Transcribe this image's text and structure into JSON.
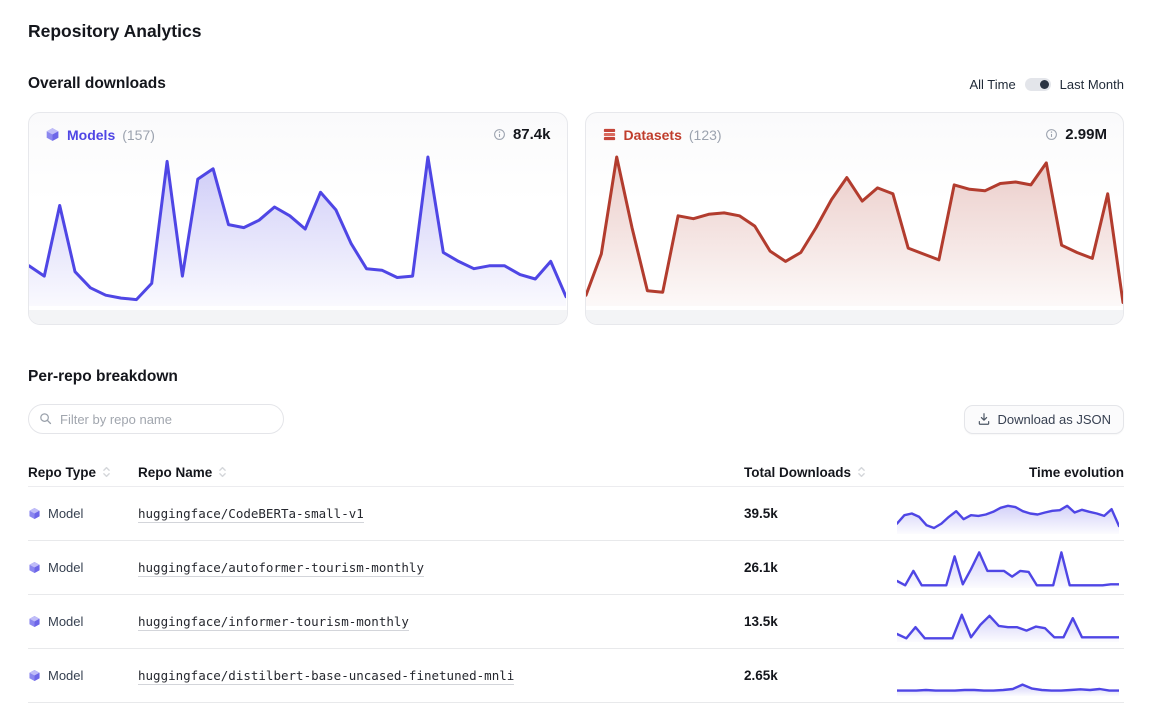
{
  "page": {
    "title": "Repository Analytics"
  },
  "overall": {
    "heading": "Overall downloads",
    "toggle": {
      "option_left": "All Time",
      "option_right": "Last Month",
      "selected": "Last Month"
    },
    "cards": [
      {
        "label": "Models",
        "count": "(157)",
        "total": "87.4k",
        "accent": "#4f46e5"
      },
      {
        "label": "Datasets",
        "count": "(123)",
        "total": "2.99M",
        "accent": "#c03d2c"
      }
    ]
  },
  "breakdown": {
    "heading": "Per-repo breakdown",
    "filter": {
      "placeholder": "Filter by repo name",
      "value": ""
    },
    "download_button": "Download as JSON",
    "columns": [
      {
        "label": "Repo Type",
        "sortable": true
      },
      {
        "label": "Repo Name",
        "sortable": true
      },
      {
        "label": "Total Downloads",
        "sortable": true
      },
      {
        "label": "Time evolution",
        "sortable": false
      }
    ],
    "rows": [
      {
        "type": "Model",
        "name": "huggingface/CodeBERTa-small-v1",
        "downloads": "39.5k"
      },
      {
        "type": "Model",
        "name": "huggingface/autoformer-tourism-monthly",
        "downloads": "26.1k"
      },
      {
        "type": "Model",
        "name": "huggingface/informer-tourism-monthly",
        "downloads": "13.5k"
      },
      {
        "type": "Model",
        "name": "huggingface/distilbert-base-uncased-finetuned-mnli",
        "downloads": "2.65k"
      }
    ]
  },
  "chart_data": [
    {
      "id": "models-overall",
      "type": "area",
      "title": "Models — overall downloads (Last Month)",
      "legend": "Models (157)",
      "total_label": "87.4k",
      "color": "#4f46e5",
      "fill_top": "rgba(79,70,229,0.28)",
      "fill_bottom": "rgba(79,70,229,0.03)",
      "note": "y values normalized 0-1; axes unlabeled in UI",
      "values": [
        0.26,
        0.19,
        0.67,
        0.22,
        0.11,
        0.06,
        0.04,
        0.03,
        0.14,
        0.97,
        0.19,
        0.85,
        0.92,
        0.54,
        0.52,
        0.57,
        0.66,
        0.6,
        0.51,
        0.76,
        0.64,
        0.41,
        0.24,
        0.23,
        0.18,
        0.19,
        1.0,
        0.35,
        0.29,
        0.24,
        0.26,
        0.26,
        0.2,
        0.17,
        0.29,
        0.05
      ]
    },
    {
      "id": "datasets-overall",
      "type": "area",
      "title": "Datasets — overall downloads (Last Month)",
      "legend": "Datasets (123)",
      "total_label": "2.99M",
      "color": "#b23c2e",
      "fill_top": "rgba(178,60,46,0.26)",
      "fill_bottom": "rgba(178,60,46,0.03)",
      "note": "y values normalized 0-1; axes unlabeled in UI",
      "values": [
        0.06,
        0.34,
        1.0,
        0.52,
        0.09,
        0.08,
        0.6,
        0.58,
        0.61,
        0.62,
        0.6,
        0.53,
        0.36,
        0.29,
        0.35,
        0.52,
        0.71,
        0.86,
        0.7,
        0.79,
        0.75,
        0.38,
        0.34,
        0.3,
        0.81,
        0.78,
        0.77,
        0.82,
        0.83,
        0.81,
        0.96,
        0.4,
        0.35,
        0.31,
        0.75,
        0.01
      ]
    },
    {
      "id": "spark-0",
      "type": "area",
      "title": "huggingface/CodeBERTa-small-v1 time evolution",
      "color": "#4f46e5",
      "fill_top": "rgba(79,70,229,0.25)",
      "fill_bottom": "rgba(79,70,229,0.02)",
      "note": "sparkline, normalized 0-1",
      "values": [
        0.25,
        0.5,
        0.55,
        0.45,
        0.2,
        0.12,
        0.25,
        0.45,
        0.62,
        0.38,
        0.5,
        0.48,
        0.52,
        0.6,
        0.72,
        0.78,
        0.74,
        0.62,
        0.55,
        0.52,
        0.58,
        0.63,
        0.65,
        0.78,
        0.58,
        0.66,
        0.6,
        0.55,
        0.48,
        0.68,
        0.18
      ]
    },
    {
      "id": "spark-1",
      "type": "area",
      "title": "huggingface/autoformer-tourism-monthly time evolution",
      "color": "#4f46e5",
      "fill_top": "rgba(79,70,229,0.25)",
      "fill_bottom": "rgba(79,70,229,0.02)",
      "note": "sparkline, normalized 0-1",
      "values": [
        0.15,
        0.02,
        0.45,
        0.02,
        0.02,
        0.02,
        0.02,
        0.88,
        0.05,
        0.5,
        1.0,
        0.45,
        0.45,
        0.45,
        0.28,
        0.45,
        0.42,
        0.02,
        0.02,
        0.02,
        1.0,
        0.02,
        0.02,
        0.02,
        0.02,
        0.02,
        0.05,
        0.05
      ]
    },
    {
      "id": "spark-2",
      "type": "area",
      "title": "huggingface/informer-tourism-monthly time evolution",
      "color": "#4f46e5",
      "fill_top": "rgba(79,70,229,0.25)",
      "fill_bottom": "rgba(79,70,229,0.02)",
      "note": "sparkline, normalized 0-1",
      "values": [
        0.18,
        0.05,
        0.38,
        0.05,
        0.05,
        0.05,
        0.05,
        0.75,
        0.08,
        0.45,
        0.72,
        0.42,
        0.38,
        0.38,
        0.28,
        0.4,
        0.35,
        0.08,
        0.08,
        0.65,
        0.08,
        0.08,
        0.08,
        0.08,
        0.08
      ]
    },
    {
      "id": "spark-3",
      "type": "area",
      "title": "huggingface/distilbert-base-uncased-finetuned-mnli time evolution",
      "color": "#4f46e5",
      "fill_top": "rgba(79,70,229,0.25)",
      "fill_bottom": "rgba(79,70,229,0.02)",
      "note": "sparkline, normalized 0-1",
      "values": [
        0.1,
        0.1,
        0.1,
        0.12,
        0.1,
        0.1,
        0.1,
        0.12,
        0.12,
        0.1,
        0.1,
        0.12,
        0.15,
        0.28,
        0.16,
        0.12,
        0.1,
        0.1,
        0.12,
        0.14,
        0.12,
        0.15,
        0.1,
        0.1
      ]
    }
  ]
}
